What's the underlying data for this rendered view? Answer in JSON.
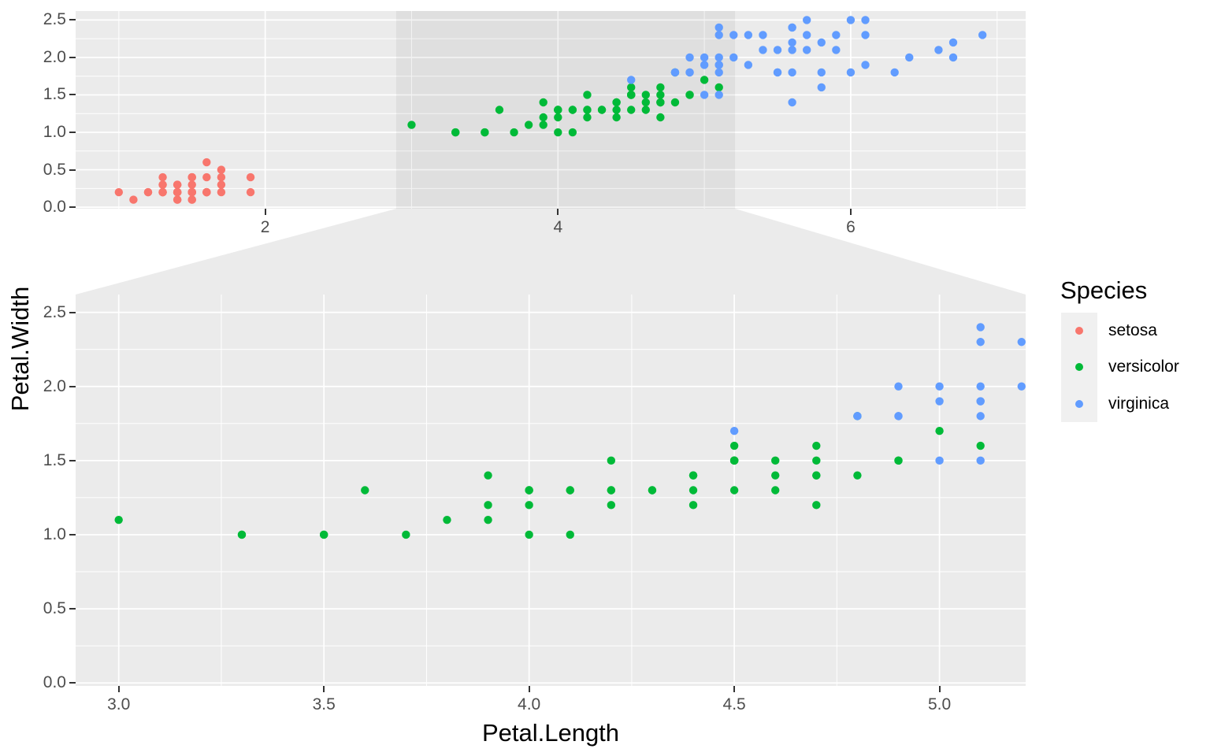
{
  "style": {
    "figure_bg": "#FFFFFF",
    "panel_bg": "#EBEBEB",
    "grid_color": "#FFFFFF",
    "zoom_indicator_fill": "rgba(0,0,0,0.047)",
    "connector_fill": "rgba(0,0,0,0.08)",
    "tick_mark_color": "#333333",
    "tick_label_color": "#4D4D4D",
    "legend_key_bg": "#F0F0F0"
  },
  "chart_data": {
    "type": "scatter",
    "title": "",
    "xlabel": "Petal.Length",
    "ylabel": "Petal.Width",
    "legend_title": "Species",
    "legend_position": "right",
    "grid": true,
    "facet": "facet_zoom (overview panel on top with shaded zoom window, zoomed panel below)",
    "zoom_region": {
      "xmin": 2.895,
      "xmax": 5.21
    },
    "panels": [
      {
        "id": "overview",
        "xlim": [
          0.705,
          7.195
        ],
        "ylim": [
          -0.02,
          2.62
        ],
        "x_ticks": [
          2,
          4,
          6
        ],
        "x_tick_labels": [
          "2",
          "4",
          "6"
        ],
        "x_minor": [
          1,
          3,
          5,
          7
        ],
        "y_ticks": [
          0,
          0.5,
          1,
          1.5,
          2,
          2.5
        ],
        "y_tick_labels": [
          "0.0",
          "0.5",
          "1.0",
          "1.5",
          "2.0",
          "2.5"
        ],
        "y_minor": [
          0.25,
          0.75,
          1.25,
          1.75,
          2.25
        ],
        "has_zoom_indicator": true
      },
      {
        "id": "zoom",
        "xlim": [
          2.895,
          5.21
        ],
        "ylim": [
          -0.02,
          2.62
        ],
        "x_ticks": [
          3,
          3.5,
          4,
          4.5,
          5
        ],
        "x_tick_labels": [
          "3.0",
          "3.5",
          "4.0",
          "4.5",
          "5.0"
        ],
        "x_minor": [
          3.25,
          3.75,
          4.25,
          4.75
        ],
        "y_ticks": [
          0,
          0.5,
          1,
          1.5,
          2,
          2.5
        ],
        "y_tick_labels": [
          "0.0",
          "0.5",
          "1.0",
          "1.5",
          "2.0",
          "2.5"
        ],
        "y_minor": [
          0.25,
          0.75,
          1.25,
          1.75,
          2.25
        ],
        "has_zoom_indicator": false
      }
    ],
    "series": [
      {
        "name": "setosa",
        "color": "#F8766D",
        "points": [
          [
            1.4,
            0.2
          ],
          [
            1.4,
            0.2
          ],
          [
            1.3,
            0.2
          ],
          [
            1.5,
            0.2
          ],
          [
            1.4,
            0.2
          ],
          [
            1.7,
            0.4
          ],
          [
            1.4,
            0.3
          ],
          [
            1.5,
            0.2
          ],
          [
            1.4,
            0.2
          ],
          [
            1.5,
            0.1
          ],
          [
            1.5,
            0.2
          ],
          [
            1.6,
            0.2
          ],
          [
            1.4,
            0.1
          ],
          [
            1.1,
            0.1
          ],
          [
            1.2,
            0.2
          ],
          [
            1.5,
            0.4
          ],
          [
            1.3,
            0.4
          ],
          [
            1.4,
            0.3
          ],
          [
            1.7,
            0.3
          ],
          [
            1.5,
            0.3
          ],
          [
            1.7,
            0.2
          ],
          [
            1.5,
            0.4
          ],
          [
            1.0,
            0.2
          ],
          [
            1.7,
            0.5
          ],
          [
            1.9,
            0.2
          ],
          [
            1.6,
            0.2
          ],
          [
            1.6,
            0.4
          ],
          [
            1.5,
            0.2
          ],
          [
            1.4,
            0.2
          ],
          [
            1.6,
            0.2
          ],
          [
            1.6,
            0.2
          ],
          [
            1.5,
            0.4
          ],
          [
            1.5,
            0.1
          ],
          [
            1.4,
            0.2
          ],
          [
            1.5,
            0.2
          ],
          [
            1.2,
            0.2
          ],
          [
            1.3,
            0.2
          ],
          [
            1.4,
            0.1
          ],
          [
            1.3,
            0.2
          ],
          [
            1.5,
            0.2
          ],
          [
            1.3,
            0.3
          ],
          [
            1.3,
            0.3
          ],
          [
            1.3,
            0.2
          ],
          [
            1.6,
            0.6
          ],
          [
            1.9,
            0.4
          ],
          [
            1.4,
            0.3
          ],
          [
            1.6,
            0.2
          ],
          [
            1.4,
            0.2
          ],
          [
            1.5,
            0.2
          ],
          [
            1.4,
            0.2
          ]
        ]
      },
      {
        "name": "versicolor",
        "color": "#00BA38",
        "points": [
          [
            4.7,
            1.4
          ],
          [
            4.5,
            1.5
          ],
          [
            4.9,
            1.5
          ],
          [
            4.0,
            1.3
          ],
          [
            4.6,
            1.5
          ],
          [
            4.5,
            1.3
          ],
          [
            4.7,
            1.6
          ],
          [
            3.3,
            1.0
          ],
          [
            4.6,
            1.3
          ],
          [
            3.9,
            1.4
          ],
          [
            3.5,
            1.0
          ],
          [
            4.2,
            1.5
          ],
          [
            4.0,
            1.0
          ],
          [
            4.7,
            1.4
          ],
          [
            3.6,
            1.3
          ],
          [
            4.4,
            1.4
          ],
          [
            4.5,
            1.5
          ],
          [
            4.1,
            1.0
          ],
          [
            4.5,
            1.5
          ],
          [
            3.9,
            1.1
          ],
          [
            4.8,
            1.8
          ],
          [
            4.0,
            1.3
          ],
          [
            4.9,
            1.5
          ],
          [
            4.7,
            1.2
          ],
          [
            4.3,
            1.3
          ],
          [
            4.4,
            1.4
          ],
          [
            4.8,
            1.4
          ],
          [
            5.0,
            1.7
          ],
          [
            4.5,
            1.5
          ],
          [
            3.5,
            1.0
          ],
          [
            3.8,
            1.1
          ],
          [
            3.7,
            1.0
          ],
          [
            3.9,
            1.2
          ],
          [
            5.1,
            1.6
          ],
          [
            4.5,
            1.5
          ],
          [
            4.5,
            1.6
          ],
          [
            4.7,
            1.5
          ],
          [
            4.4,
            1.3
          ],
          [
            4.1,
            1.3
          ],
          [
            4.0,
            1.3
          ],
          [
            4.4,
            1.2
          ],
          [
            4.6,
            1.4
          ],
          [
            4.0,
            1.2
          ],
          [
            3.3,
            1.0
          ],
          [
            4.2,
            1.3
          ],
          [
            4.2,
            1.2
          ],
          [
            4.2,
            1.3
          ],
          [
            4.3,
            1.3
          ],
          [
            3.0,
            1.1
          ],
          [
            4.1,
            1.3
          ]
        ]
      },
      {
        "name": "virginica",
        "color": "#619CFF",
        "points": [
          [
            6.0,
            2.5
          ],
          [
            5.1,
            1.9
          ],
          [
            5.9,
            2.1
          ],
          [
            5.6,
            1.8
          ],
          [
            5.8,
            2.2
          ],
          [
            6.6,
            2.1
          ],
          [
            4.5,
            1.7
          ],
          [
            6.3,
            1.8
          ],
          [
            5.8,
            1.8
          ],
          [
            6.1,
            2.5
          ],
          [
            5.1,
            2.0
          ],
          [
            5.3,
            1.9
          ],
          [
            5.5,
            2.1
          ],
          [
            5.0,
            2.0
          ],
          [
            5.1,
            2.4
          ],
          [
            5.3,
            2.3
          ],
          [
            5.5,
            1.8
          ],
          [
            6.7,
            2.2
          ],
          [
            6.9,
            2.3
          ],
          [
            5.0,
            1.5
          ],
          [
            5.7,
            2.3
          ],
          [
            4.9,
            2.0
          ],
          [
            6.7,
            2.0
          ],
          [
            4.9,
            1.8
          ],
          [
            5.7,
            2.1
          ],
          [
            6.0,
            1.8
          ],
          [
            4.8,
            1.8
          ],
          [
            4.9,
            1.8
          ],
          [
            5.6,
            2.1
          ],
          [
            5.8,
            1.6
          ],
          [
            6.1,
            1.9
          ],
          [
            6.4,
            2.0
          ],
          [
            5.6,
            2.2
          ],
          [
            5.1,
            1.5
          ],
          [
            5.6,
            1.4
          ],
          [
            6.1,
            2.3
          ],
          [
            5.6,
            2.4
          ],
          [
            5.5,
            1.8
          ],
          [
            4.8,
            1.8
          ],
          [
            5.4,
            2.1
          ],
          [
            5.6,
            2.4
          ],
          [
            5.1,
            2.3
          ],
          [
            5.1,
            1.9
          ],
          [
            5.9,
            2.3
          ],
          [
            5.7,
            2.5
          ],
          [
            5.2,
            2.3
          ],
          [
            5.0,
            1.9
          ],
          [
            5.2,
            2.0
          ],
          [
            5.4,
            2.3
          ],
          [
            5.1,
            1.8
          ]
        ]
      }
    ]
  }
}
